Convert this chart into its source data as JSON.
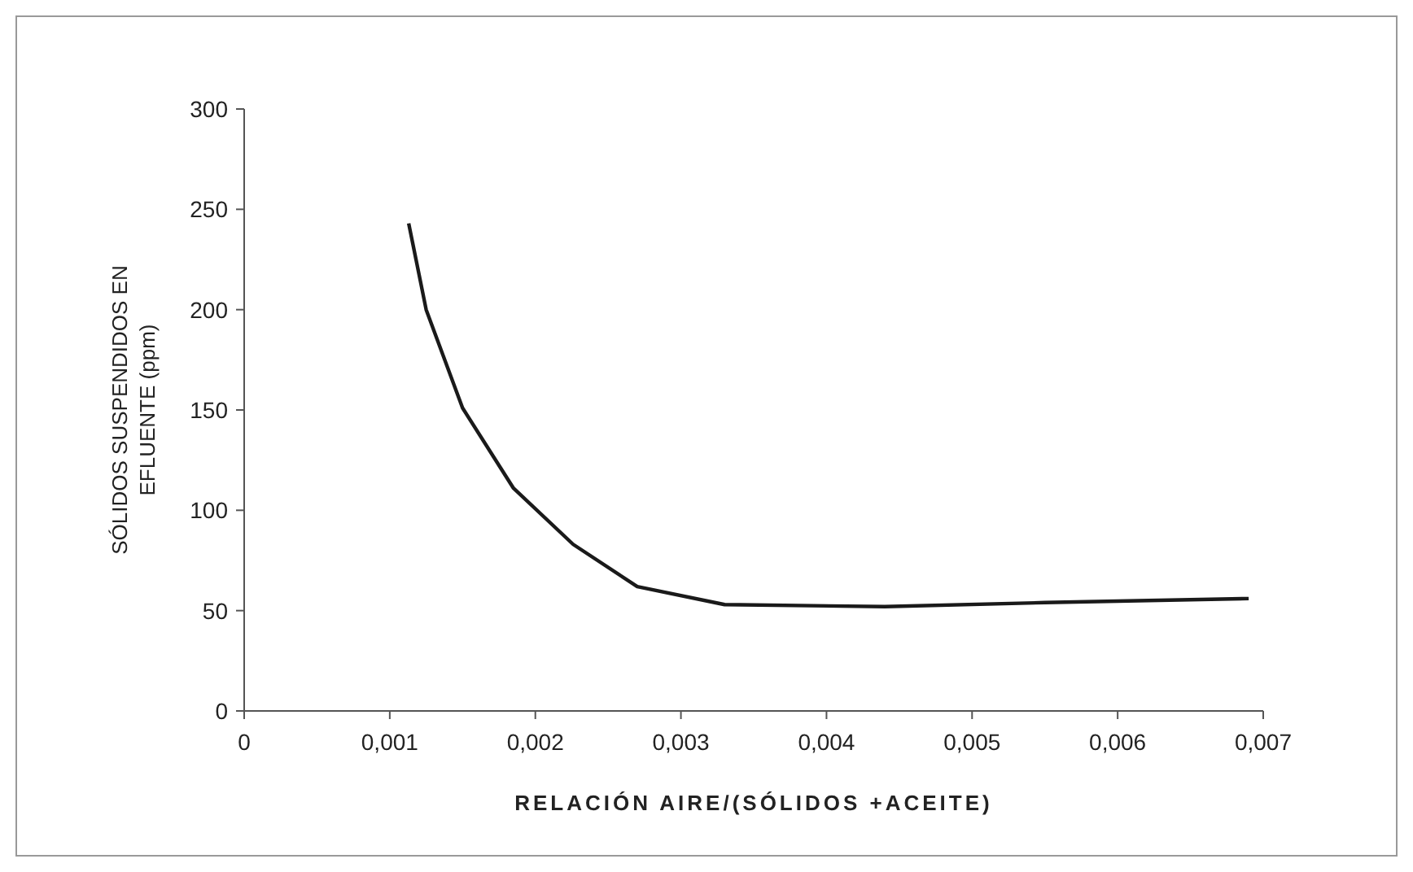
{
  "chart_data": {
    "type": "line",
    "xlabel": "RELACIÓN AIRE/(SÓLIDOS +ACEITE)",
    "ylabel": "SÓLIDOS SUSPENDIDOS EN EFLUENTE (ppm)",
    "x": [
      0.00113,
      0.00125,
      0.0015,
      0.00185,
      0.00226,
      0.0027,
      0.0033,
      0.0044,
      0.0055,
      0.0069
    ],
    "series": [
      {
        "color": "#1a1a1a",
        "values": [
          243,
          200,
          151,
          111,
          83,
          62,
          53,
          52,
          54,
          56
        ]
      }
    ],
    "xlim": [
      0,
      0.007
    ],
    "ylim": [
      0,
      300
    ],
    "xticks": [
      {
        "value": 0,
        "label": "0"
      },
      {
        "value": 0.001,
        "label": "0,001"
      },
      {
        "value": 0.002,
        "label": "0,002"
      },
      {
        "value": 0.003,
        "label": "0,003"
      },
      {
        "value": 0.004,
        "label": "0,004"
      },
      {
        "value": 0.005,
        "label": "0,005"
      },
      {
        "value": 0.006,
        "label": "0,006"
      },
      {
        "value": 0.007,
        "label": "0,007"
      }
    ],
    "yticks": [
      0,
      50,
      100,
      150,
      200,
      250,
      300
    ],
    "grid": false,
    "marker": "none",
    "line_style": "solid"
  }
}
